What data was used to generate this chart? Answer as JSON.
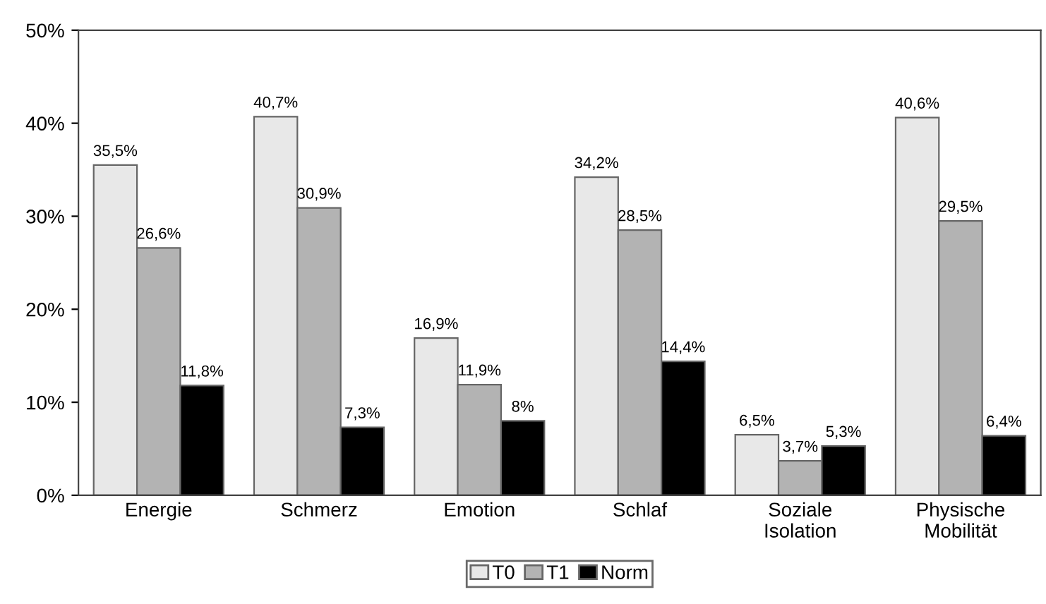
{
  "chart_data": {
    "type": "bar",
    "categories": [
      "Energie",
      "Schmerz",
      "Emotion",
      "Schlaf",
      "Soziale\nIsolation",
      "Physische\nMobilität"
    ],
    "series": [
      {
        "name": "T0",
        "color": "#e8e8e8",
        "values": [
          35.5,
          40.7,
          16.9,
          34.2,
          6.5,
          40.6
        ],
        "value_labels": [
          "35,5%",
          "40,7%",
          "16,9%",
          "34,2%",
          "6,5%",
          "40,6%"
        ]
      },
      {
        "name": "T1",
        "color": "#b3b3b3",
        "values": [
          26.6,
          30.9,
          11.9,
          28.5,
          3.7,
          29.5
        ],
        "value_labels": [
          "26,6%",
          "30,9%",
          "11,9%",
          "28,5%",
          "3,7%",
          "29,5%"
        ]
      },
      {
        "name": "Norm",
        "color": "#000000",
        "values": [
          11.8,
          7.3,
          8,
          14.4,
          5.3,
          6.4
        ],
        "value_labels": [
          "11,8%",
          "7,3%",
          "8%",
          "14,4%",
          "5,3%",
          "6,4%"
        ]
      }
    ],
    "ylim": [
      0,
      50
    ],
    "yticks": [
      {
        "value": 0,
        "label": "0%"
      },
      {
        "value": 10,
        "label": "10%"
      },
      {
        "value": 20,
        "label": "20%"
      },
      {
        "value": 30,
        "label": "30%"
      },
      {
        "value": 40,
        "label": "40%"
      },
      {
        "value": 50,
        "label": "50%"
      }
    ],
    "grid": false,
    "legend": "bottom"
  }
}
